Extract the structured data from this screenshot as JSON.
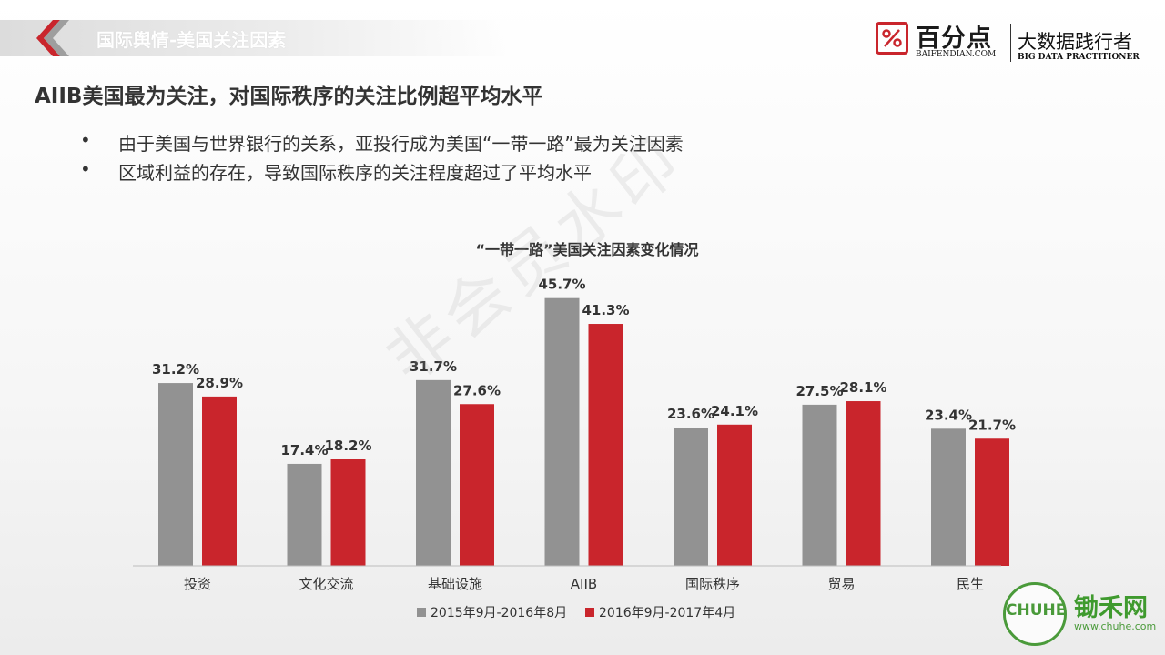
{
  "header": {
    "section_title": "国际舆情-美国关注因素",
    "logo_name": "百分点",
    "logo_domain": "BAIFENDIAN.COM",
    "logo_slogan": "大数据践行者",
    "logo_slogan_en": "BIG DATA PRACTITIONER"
  },
  "page_title": "AIIB美国最为关注，对国际秩序的关注比例超平均水平",
  "bullets": [
    {
      "marker": "•",
      "text": "由于美国与世界银行的关系，亚投行成为美国“一带一路”最为关注因素"
    },
    {
      "marker": "•",
      "text": "区域利益的存在，导致国际秩序的关注程度超过了平均水平"
    }
  ],
  "watermark": "非会员水印",
  "chuhe": {
    "badge": "CHUHE",
    "name": "锄禾网",
    "url": "www.chuhe.com"
  },
  "chart_data": {
    "type": "bar",
    "title": "“一带一路”美国关注因素变化情况",
    "categories": [
      "投资",
      "文化交流",
      "基础设施",
      "AIIB",
      "国际秩序",
      "贸易",
      "民生"
    ],
    "series": [
      {
        "name": "2015年9月-2016年8月",
        "color": "#929292",
        "values": [
          31.2,
          17.4,
          31.7,
          45.7,
          23.6,
          27.5,
          23.4
        ]
      },
      {
        "name": "2016年9月-2017年4月",
        "color": "#c9252c",
        "values": [
          28.9,
          18.2,
          27.6,
          41.3,
          24.1,
          28.1,
          21.7
        ]
      }
    ],
    "value_suffix": "%",
    "ylim": [
      0,
      50
    ],
    "xlabel": "",
    "ylabel": "",
    "grid": false,
    "legend_position": "bottom"
  }
}
